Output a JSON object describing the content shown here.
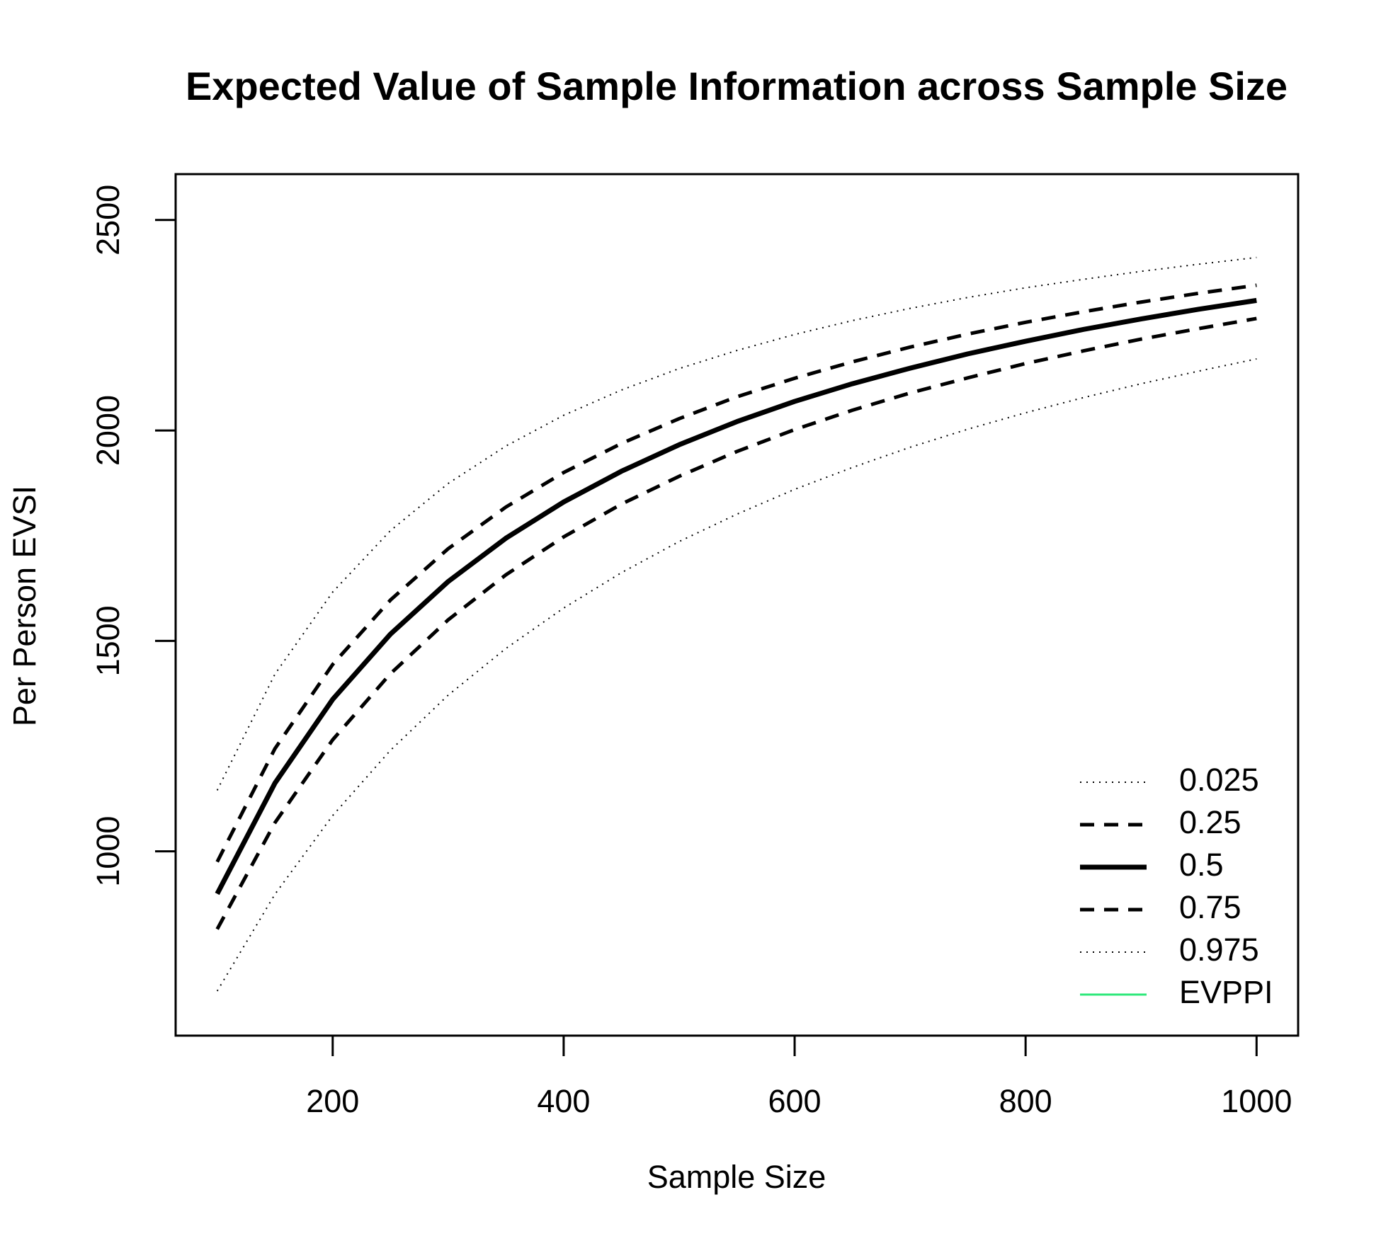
{
  "chart_data": {
    "type": "line",
    "title": "Expected Value of Sample Information across Sample Size",
    "x_label": "Sample Size",
    "y_label": "Per Person EVSI",
    "x": [
      100,
      150,
      200,
      250,
      300,
      350,
      400,
      450,
      500,
      550,
      600,
      650,
      700,
      750,
      800,
      850,
      900,
      950,
      1000
    ],
    "series": [
      {
        "name": "0.025",
        "color": "#000000",
        "dash": "dotted",
        "values": [
          668,
          898,
          1085,
          1240,
          1371,
          1482,
          1578,
          1662,
          1736,
          1801,
          1860,
          1912,
          1960,
          2003,
          2042,
          2078,
          2111,
          2141,
          2170
        ]
      },
      {
        "name": "0.25",
        "color": "#000000",
        "dash": "dashed",
        "values": [
          815,
          1068,
          1265,
          1422,
          1550,
          1657,
          1747,
          1825,
          1891,
          1950,
          2002,
          2048,
          2089,
          2125,
          2159,
          2189,
          2217,
          2242,
          2266
        ]
      },
      {
        "name": "0.5",
        "color": "#000000",
        "dash": "solid",
        "values": [
          899,
          1162,
          1361,
          1516,
          1641,
          1744,
          1830,
          1903,
          1966,
          2021,
          2069,
          2111,
          2148,
          2182,
          2212,
          2240,
          2265,
          2288,
          2309
        ]
      },
      {
        "name": "0.75",
        "color": "#000000",
        "dash": "dashed",
        "values": [
          975,
          1244,
          1444,
          1597,
          1719,
          1818,
          1900,
          1969,
          2028,
          2080,
          2124,
          2163,
          2198,
          2229,
          2257,
          2282,
          2305,
          2326,
          2345
        ]
      },
      {
        "name": "0.975",
        "color": "#000000",
        "dash": "dotted",
        "values": [
          1145,
          1421,
          1616,
          1762,
          1874,
          1963,
          2036,
          2096,
          2147,
          2190,
          2228,
          2261,
          2290,
          2316,
          2339,
          2359,
          2378,
          2395,
          2411
        ]
      },
      {
        "name": "EVPPI",
        "color": "#2ee87a",
        "dash": "thin",
        "values": [
          null,
          null,
          null,
          null,
          null,
          null,
          null,
          null,
          null,
          null,
          null,
          null,
          null,
          null,
          null,
          null,
          null,
          null,
          null
        ]
      }
    ],
    "xlim": [
      64,
      1036
    ],
    "xticks": [
      200,
      400,
      600,
      800,
      1000
    ],
    "ylim": [
      562,
      2609
    ],
    "yticks": [
      1000,
      1500,
      2000,
      2500
    ],
    "legend": "bottom-right",
    "grid": false
  }
}
